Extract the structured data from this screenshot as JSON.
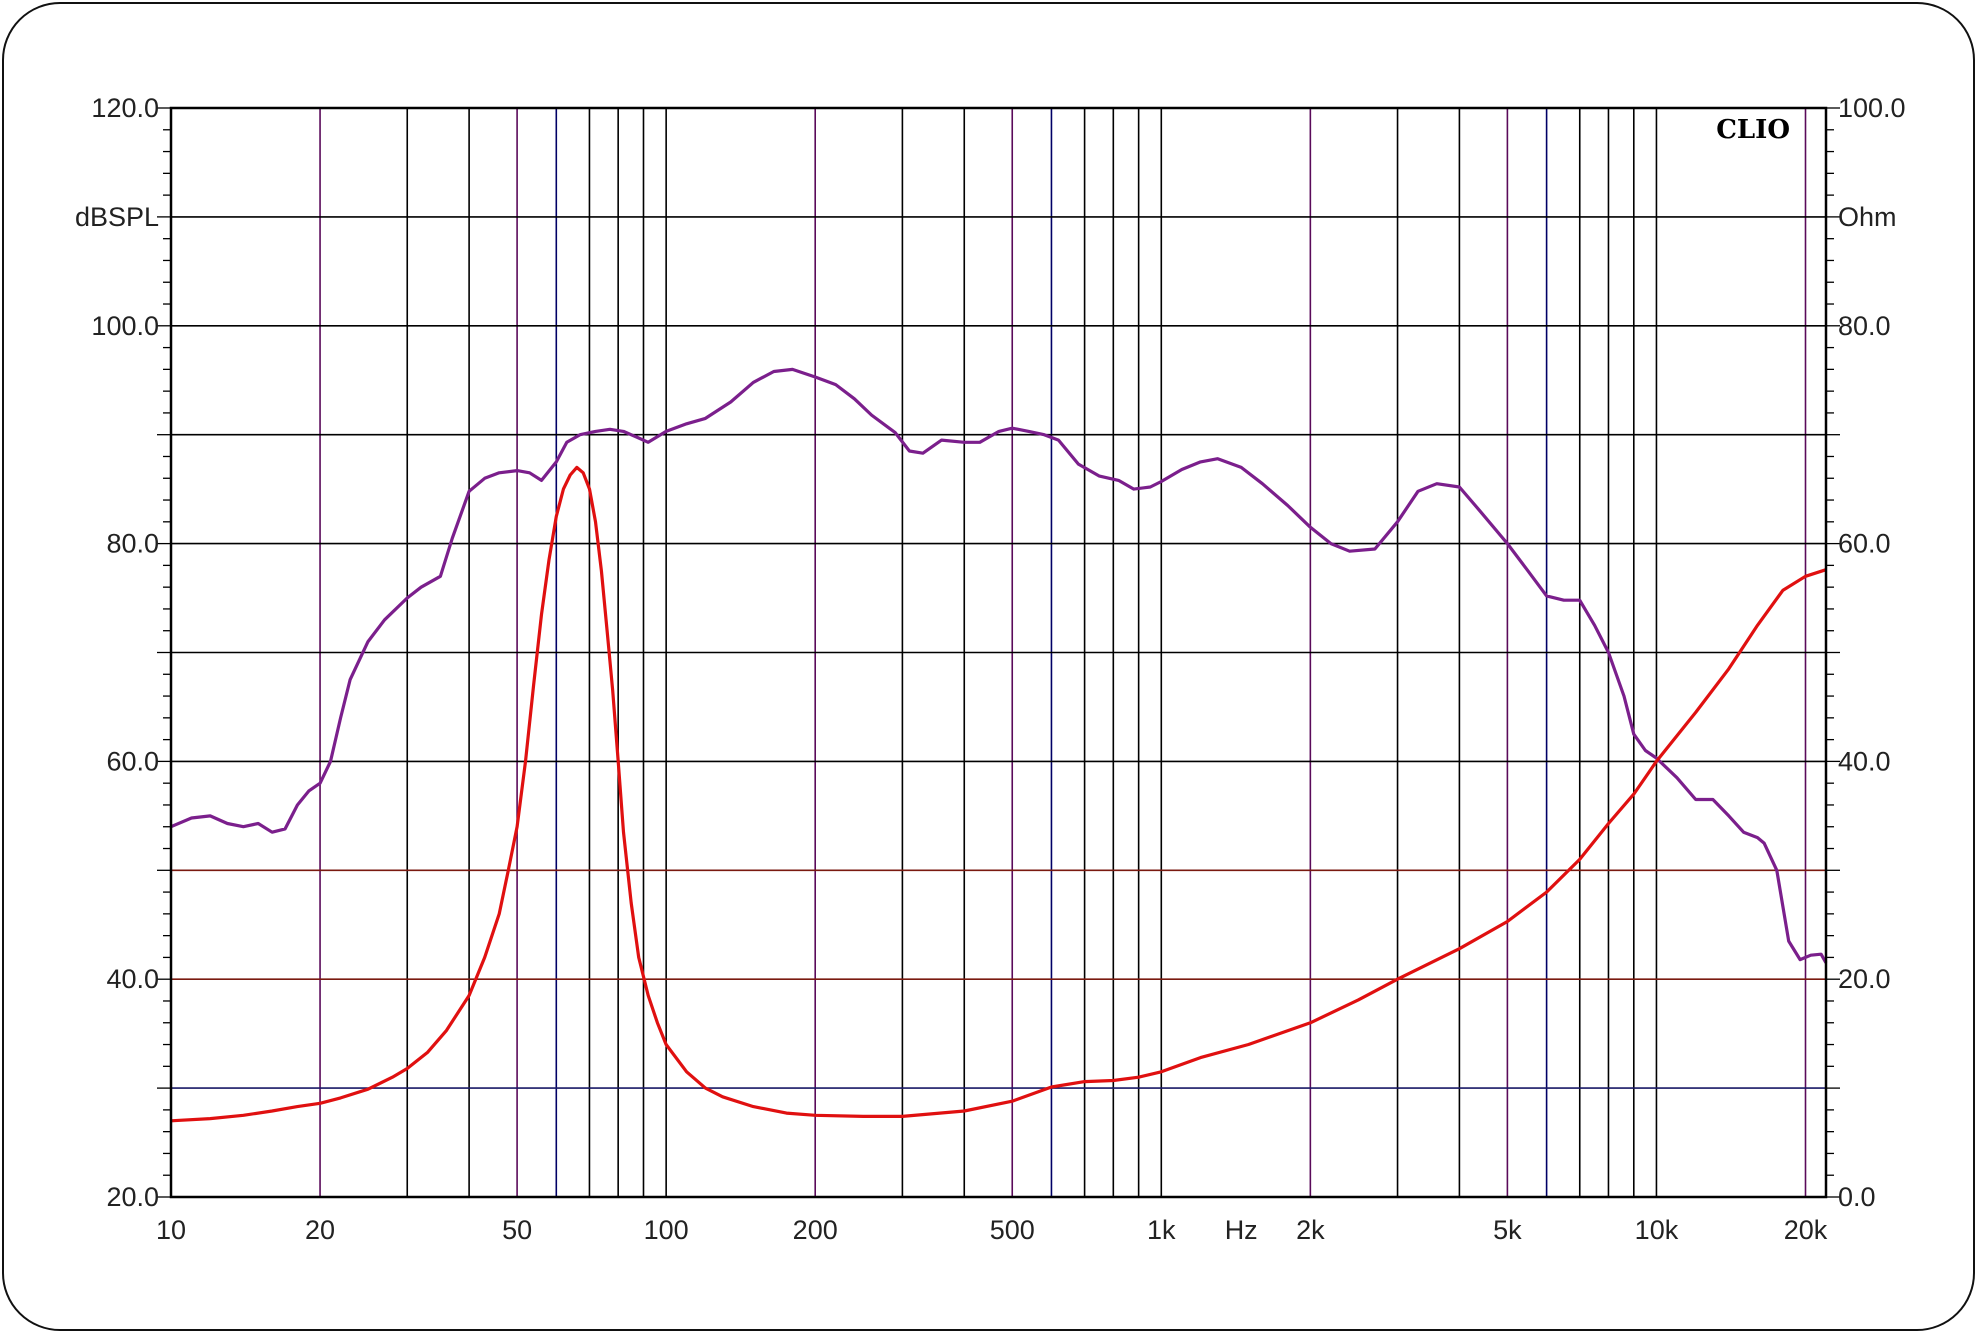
{
  "chart_data": {
    "type": "line",
    "brand": "CLIO",
    "x_axis": {
      "scale": "log",
      "range": [
        10,
        22000
      ],
      "unit_label": "Hz",
      "tick_values": [
        10,
        20,
        50,
        100,
        200,
        500,
        1000,
        2000,
        5000,
        10000,
        20000
      ],
      "tick_labels": [
        "10",
        "20",
        "50",
        "100",
        "200",
        "500",
        "1k",
        "2k",
        "5k",
        "10k",
        "20k"
      ]
    },
    "y_left": {
      "label": "dBSPL",
      "range": [
        20,
        120
      ],
      "tick_values": [
        20,
        40,
        60,
        80,
        100,
        120
      ],
      "tick_labels": [
        "20.0",
        "40.0",
        "60.0",
        "80.0",
        "100.0",
        "120.0"
      ]
    },
    "y_right": {
      "label": "Ohm",
      "range": [
        0,
        100
      ],
      "tick_values": [
        0,
        20,
        40,
        60,
        80,
        100
      ],
      "tick_labels": [
        "0.0",
        "20.0",
        "40.0",
        "60.0",
        "80.0",
        "100.0"
      ]
    },
    "grid": true,
    "colors": {
      "spl": "#7b1f8c",
      "impedance": "#e01010",
      "grid_major": "#000000",
      "grid_minor_x": "#000066",
      "grid_decade_mid": "#5a0a5a",
      "grid_h_brown": "#7a1a10",
      "grid_h_navy": "#1a1a66"
    },
    "series": [
      {
        "axis": "left",
        "color": "#7b1f8c",
        "x": [
          10,
          11,
          12,
          13,
          14,
          15,
          16,
          17,
          18,
          19,
          20,
          21,
          22,
          23,
          25,
          27,
          30,
          32,
          35,
          37,
          40,
          43,
          46,
          50,
          53,
          56,
          60,
          63,
          67,
          72,
          77,
          82,
          87,
          92,
          100,
          110,
          120,
          135,
          150,
          165,
          180,
          200,
          220,
          240,
          260,
          290,
          310,
          330,
          360,
          400,
          430,
          470,
          500,
          540,
          580,
          620,
          680,
          750,
          820,
          880,
          950,
          1000,
          1100,
          1200,
          1300,
          1450,
          1600,
          1800,
          2000,
          2200,
          2400,
          2700,
          3000,
          3300,
          3600,
          4000,
          4400,
          5000,
          5500,
          6000,
          6500,
          7000,
          7500,
          8000,
          8600,
          9000,
          9500,
          10000,
          11000,
          12000,
          13000,
          14000,
          15000,
          16000,
          16500,
          17500,
          18500,
          19500,
          20500,
          21500,
          22000
        ],
        "y": [
          54.0,
          54.8,
          55.0,
          54.3,
          54.0,
          54.3,
          53.5,
          53.8,
          56.0,
          57.3,
          58.0,
          60.0,
          64.0,
          67.5,
          71.0,
          73.0,
          75.0,
          76.0,
          77.0,
          80.5,
          84.8,
          86.0,
          86.5,
          86.7,
          86.5,
          85.8,
          87.5,
          89.3,
          90.0,
          90.3,
          90.5,
          90.3,
          89.8,
          89.3,
          90.3,
          91.0,
          91.5,
          93.0,
          94.8,
          95.8,
          96.0,
          95.3,
          94.6,
          93.3,
          91.8,
          90.2,
          88.5,
          88.3,
          89.5,
          89.3,
          89.3,
          90.3,
          90.6,
          90.3,
          90.0,
          89.5,
          87.3,
          86.2,
          85.8,
          85.0,
          85.2,
          85.7,
          86.8,
          87.5,
          87.8,
          87.0,
          85.5,
          83.5,
          81.5,
          80.0,
          79.3,
          79.5,
          82.0,
          84.8,
          85.5,
          85.2,
          83.0,
          80.0,
          77.5,
          75.2,
          74.8,
          74.8,
          72.5,
          70.0,
          66.0,
          62.5,
          61.0,
          60.3,
          58.5,
          56.5,
          56.5,
          55.0,
          53.5,
          53.0,
          52.5,
          50.0,
          43.5,
          41.8,
          42.2,
          42.3,
          41.5
        ],
        "name": ""
      },
      {
        "axis": "right",
        "color": "#e01010",
        "x": [
          10,
          12,
          14,
          16,
          18,
          20,
          22,
          25,
          28,
          30,
          33,
          36,
          40,
          43,
          46,
          48,
          50,
          52,
          54,
          56,
          58,
          60,
          62,
          64,
          66,
          68,
          70,
          72,
          74,
          76,
          78,
          80,
          82,
          85,
          88,
          92,
          96,
          100,
          110,
          120,
          130,
          150,
          175,
          200,
          250,
          300,
          400,
          500,
          600,
          700,
          800,
          900,
          1000,
          1200,
          1500,
          2000,
          2500,
          3000,
          4000,
          5000,
          6000,
          7000,
          8000,
          9000,
          10000,
          12000,
          14000,
          16000,
          18000,
          20000,
          22000
        ],
        "y": [
          7.0,
          7.2,
          7.5,
          7.9,
          8.3,
          8.6,
          9.1,
          9.9,
          11.0,
          11.8,
          13.3,
          15.3,
          18.5,
          22.0,
          26.0,
          30.0,
          34.0,
          40.0,
          47.0,
          53.5,
          58.5,
          62.5,
          65.0,
          66.3,
          67.0,
          66.5,
          65.0,
          62.0,
          57.5,
          52.0,
          46.5,
          40.0,
          33.5,
          27.0,
          22.0,
          18.5,
          16.0,
          14.0,
          11.5,
          10.0,
          9.2,
          8.3,
          7.7,
          7.5,
          7.4,
          7.4,
          7.9,
          8.8,
          10.1,
          10.6,
          10.7,
          11.0,
          11.5,
          12.8,
          14.0,
          16.0,
          18.1,
          20.0,
          22.8,
          25.3,
          28.0,
          31.0,
          34.3,
          37.0,
          40.0,
          44.5,
          48.5,
          52.5,
          55.7,
          57.0,
          57.6
        ],
        "name": ""
      }
    ]
  }
}
